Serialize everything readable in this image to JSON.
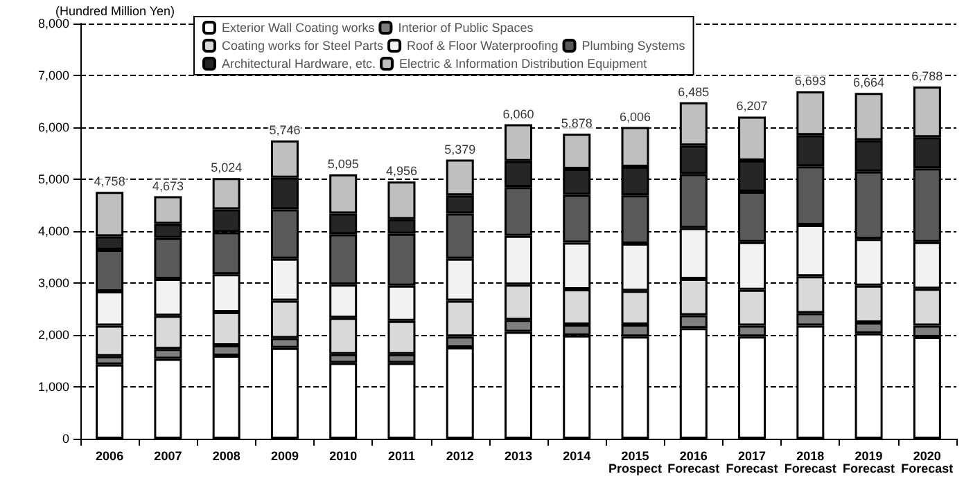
{
  "chart_data": {
    "type": "bar",
    "stacked": true,
    "ylabel": "(Hundred Million Yen)",
    "categories": [
      "2006",
      "2007",
      "2008",
      "2009",
      "2010",
      "2011",
      "2012",
      "2013",
      "2014",
      "2015\nProspect",
      "2016\nForecast",
      "2017\nForecast",
      "2018\nForecast",
      "2019\nForecast",
      "2020\nForecast"
    ],
    "series": [
      {
        "name": "Exterior Wall Coating works",
        "color": "#ffffff",
        "values": [
          1430,
          1540,
          1600,
          1750,
          1460,
          1460,
          1760,
          2060,
          1990,
          1970,
          2130,
          1970,
          2180,
          2030,
          1960
        ]
      },
      {
        "name": "Interior of Public Spaces",
        "color": "#7f7f7f",
        "values": [
          160,
          190,
          200,
          190,
          170,
          170,
          210,
          230,
          210,
          230,
          250,
          210,
          240,
          210,
          220
        ]
      },
      {
        "name": "Coating works for Steel Parts",
        "color": "#d9d9d9",
        "values": [
          590,
          640,
          640,
          720,
          700,
          640,
          690,
          680,
          680,
          650,
          700,
          690,
          710,
          710,
          710
        ]
      },
      {
        "name": "Roof & Floor Waterproofing",
        "color": "#f2f2f2",
        "values": [
          660,
          710,
          730,
          810,
          640,
          680,
          810,
          940,
          900,
          910,
          980,
          920,
          990,
          900,
          900
        ]
      },
      {
        "name": "Plumbing Systems",
        "color": "#595959",
        "values": [
          800,
          790,
          810,
          950,
          970,
          1000,
          870,
          940,
          920,
          930,
          1040,
          970,
          1130,
          1300,
          1420
        ]
      },
      {
        "name": "Architectural Hardware, etc.",
        "color": "#262626",
        "values": [
          260,
          270,
          440,
          610,
          400,
          280,
          350,
          500,
          500,
          550,
          550,
          600,
          600,
          600,
          600
        ]
      },
      {
        "name": "Electric & Information Distribution Equipment",
        "color": "#bfbfbf",
        "values": [
          858,
          533,
          604,
          716,
          755,
          726,
          689,
          710,
          678,
          766,
          835,
          847,
          843,
          914,
          978
        ]
      }
    ],
    "totals": [
      "4,758",
      "4,673",
      "5,024",
      "5,746",
      "5,095",
      "4,956",
      "5,379",
      "6,060",
      "5,878",
      "6,006",
      "6,485",
      "6,207",
      "6,693",
      "6,664",
      "6,788"
    ],
    "ylim": [
      0,
      8000
    ],
    "yticks": [
      0,
      {
        "value": 1000,
        "label": "1,000"
      },
      {
        "value": 2000,
        "label": "2,000"
      },
      {
        "value": 3000,
        "label": "3,000"
      },
      {
        "value": 4000,
        "label": "4,000"
      },
      {
        "value": 5000,
        "label": "5,000"
      },
      {
        "value": 6000,
        "label": "6,000"
      },
      {
        "value": 7000,
        "label": "7,000"
      },
      {
        "value": 8000,
        "label": "8,000"
      }
    ],
    "grid": "y",
    "legend": "top"
  }
}
